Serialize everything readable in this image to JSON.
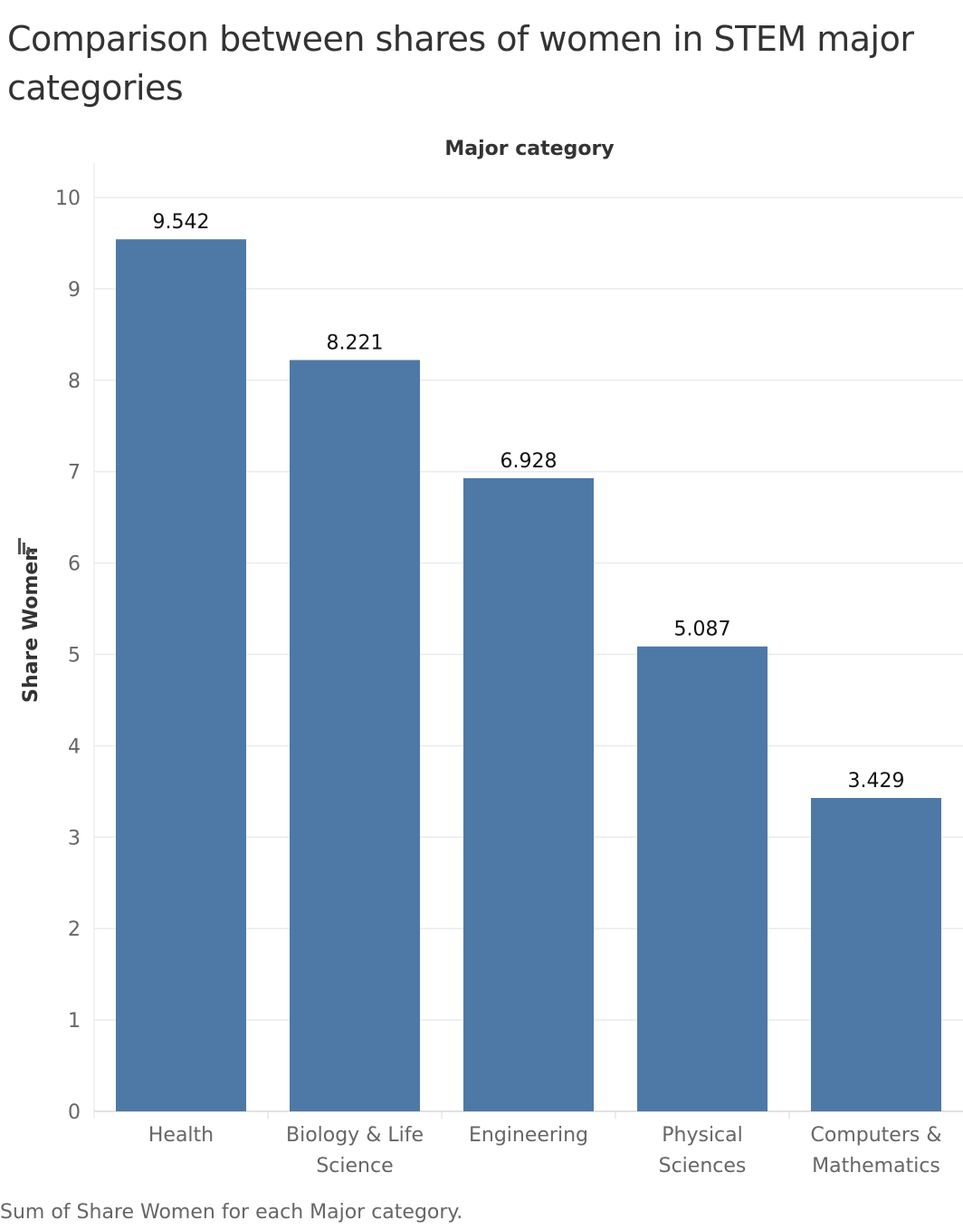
{
  "title": "Comparison between shares of women in STEM major categories",
  "footer": "Sum of Share Women for each Major category.",
  "colors": {
    "bar": "#4e79a7",
    "grid": "#ebebeb",
    "text": "#333333",
    "axis_text": "#666666"
  },
  "chart_data": {
    "type": "bar",
    "title": "Comparison between shares of women in STEM major categories",
    "xlabel": "Major category",
    "ylabel": "Share Women",
    "categories": [
      [
        "Health"
      ],
      [
        "Biology & Life",
        "Science"
      ],
      [
        "Engineering"
      ],
      [
        "Physical",
        "Sciences"
      ],
      [
        "Computers &",
        "Mathematics"
      ]
    ],
    "values": [
      9.542,
      8.221,
      6.928,
      5.087,
      3.429
    ],
    "data_labels": [
      "9.542",
      "8.221",
      "6.928",
      "5.087",
      "3.429"
    ],
    "yticks": [
      0,
      1,
      2,
      3,
      4,
      5,
      6,
      7,
      8,
      9,
      10
    ],
    "ylim": [
      0,
      10
    ],
    "grid": true,
    "legend": "none"
  }
}
